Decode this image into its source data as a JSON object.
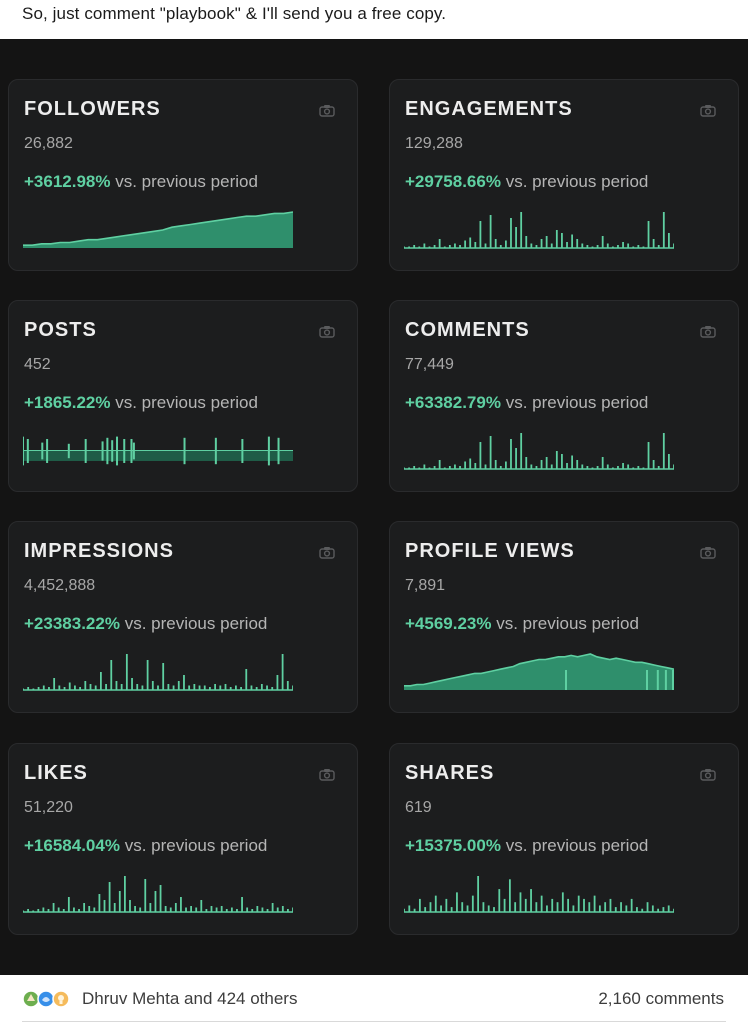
{
  "post": {
    "text": "So, just comment \"playbook\" & I'll send you a free copy."
  },
  "dashboard": {
    "vs_label": "vs. previous period",
    "accent_color": "#5fd0a2",
    "cards": [
      {
        "id": "followers",
        "title": "FOLLOWERS",
        "value": "26,882",
        "change": "+3612.98%",
        "chart": "area-rise",
        "series": [
          2,
          2,
          3,
          3,
          4,
          4,
          5,
          6,
          6,
          7,
          8,
          9,
          10,
          11,
          12,
          13,
          15,
          16,
          17,
          18,
          19,
          20,
          21,
          22,
          23,
          23,
          24,
          25,
          25,
          26
        ]
      },
      {
        "id": "engagements",
        "title": "ENGAGEMENTS",
        "value": "129,288",
        "change": "+29758.66%",
        "chart": "spikes",
        "series": [
          1,
          1,
          2,
          1,
          3,
          1,
          2,
          6,
          1,
          2,
          3,
          2,
          5,
          7,
          4,
          18,
          3,
          22,
          6,
          2,
          5,
          20,
          14,
          24,
          8,
          3,
          2,
          6,
          8,
          3,
          12,
          10,
          4,
          9,
          6,
          3,
          2,
          1,
          2,
          8,
          3,
          1,
          2,
          4,
          3,
          1,
          2,
          1,
          18,
          6,
          2,
          24,
          10,
          3
        ]
      },
      {
        "id": "posts",
        "title": "POSTS",
        "value": "452",
        "change": "+1865.22%",
        "chart": "bars",
        "series": [
          24,
          0,
          20,
          0,
          0,
          0,
          0,
          0,
          14,
          0,
          20,
          0,
          0,
          0,
          0,
          0,
          0,
          0,
          0,
          12,
          0,
          0,
          0,
          0,
          0,
          0,
          20,
          0,
          0,
          0,
          0,
          0,
          0,
          16,
          0,
          22,
          0,
          18,
          0,
          24,
          0,
          0,
          20,
          0,
          0,
          20,
          14,
          0,
          0,
          0,
          0,
          0,
          0,
          0,
          0,
          0,
          0,
          0,
          0,
          0,
          0,
          0,
          0,
          0,
          0,
          0,
          0,
          22,
          0,
          0,
          0,
          0,
          0,
          0,
          0,
          0,
          0,
          0,
          0,
          0,
          22,
          0,
          0,
          0,
          0,
          0,
          0,
          0,
          0,
          0,
          0,
          20,
          0,
          0,
          0,
          0,
          0,
          0,
          0,
          0,
          0,
          0,
          24,
          0,
          0,
          0,
          22,
          0,
          0,
          0,
          0,
          0,
          0
        ]
      },
      {
        "id": "comments",
        "title": "COMMENTS",
        "value": "77,449",
        "change": "+63382.79%",
        "chart": "spikes",
        "series": [
          1,
          1,
          2,
          1,
          3,
          1,
          2,
          6,
          1,
          2,
          3,
          2,
          5,
          7,
          4,
          18,
          3,
          22,
          6,
          2,
          5,
          20,
          14,
          24,
          8,
          3,
          2,
          6,
          8,
          3,
          12,
          10,
          4,
          9,
          6,
          3,
          2,
          1,
          2,
          8,
          3,
          1,
          2,
          4,
          3,
          1,
          2,
          1,
          18,
          6,
          2,
          24,
          10,
          3
        ]
      },
      {
        "id": "impressions",
        "title": "IMPRESSIONS",
        "value": "4,452,888",
        "change": "+23383.22%",
        "chart": "spikes",
        "series": [
          1,
          2,
          1,
          2,
          3,
          2,
          8,
          3,
          2,
          5,
          3,
          2,
          6,
          4,
          3,
          12,
          4,
          20,
          6,
          4,
          24,
          8,
          4,
          3,
          20,
          6,
          3,
          18,
          4,
          3,
          6,
          10,
          3,
          4,
          3,
          3,
          2,
          4,
          3,
          4,
          2,
          3,
          2,
          14,
          3,
          2,
          4,
          3,
          2,
          10,
          24,
          6,
          3
        ]
      },
      {
        "id": "profile-views",
        "title": "PROFILE VIEWS",
        "value": "7,891",
        "change": "+4569.23%",
        "chart": "area-hill",
        "series": [
          3,
          3,
          4,
          4,
          5,
          6,
          7,
          8,
          9,
          10,
          11,
          12,
          12,
          13,
          14,
          15,
          16,
          17,
          19,
          20,
          21,
          22,
          22,
          23,
          24,
          24,
          25,
          24,
          25,
          26,
          24,
          23,
          22,
          23,
          22,
          21,
          20,
          20,
          19,
          18,
          17,
          16,
          15
        ]
      },
      {
        "id": "likes",
        "title": "LIKES",
        "value": "51,220",
        "change": "+16584.04%",
        "chart": "spikes",
        "series": [
          1,
          2,
          1,
          2,
          3,
          2,
          6,
          3,
          2,
          10,
          3,
          2,
          6,
          4,
          3,
          12,
          8,
          20,
          6,
          14,
          24,
          8,
          4,
          3,
          22,
          6,
          14,
          18,
          4,
          3,
          6,
          10,
          3,
          4,
          3,
          8,
          2,
          4,
          3,
          4,
          2,
          3,
          2,
          10,
          3,
          2,
          4,
          3,
          2,
          6,
          3,
          4,
          2,
          3
        ]
      },
      {
        "id": "shares",
        "title": "SHARES",
        "value": "619",
        "change": "+15375.00%",
        "chart": "spikes",
        "series": [
          2,
          4,
          2,
          8,
          3,
          6,
          10,
          4,
          8,
          3,
          12,
          6,
          4,
          10,
          22,
          6,
          4,
          3,
          14,
          8,
          20,
          6,
          12,
          8,
          14,
          6,
          10,
          4,
          8,
          6,
          12,
          8,
          4,
          10,
          8,
          6,
          10,
          4,
          6,
          8,
          3,
          6,
          4,
          8,
          3,
          2,
          6,
          4,
          2,
          3,
          4,
          2
        ]
      }
    ]
  },
  "footer": {
    "reactors": "Dhruv Mehta and 424 others",
    "comments": "2,160 comments",
    "reaction_icons": [
      "celebrate-icon",
      "support-icon",
      "insightful-icon"
    ]
  }
}
